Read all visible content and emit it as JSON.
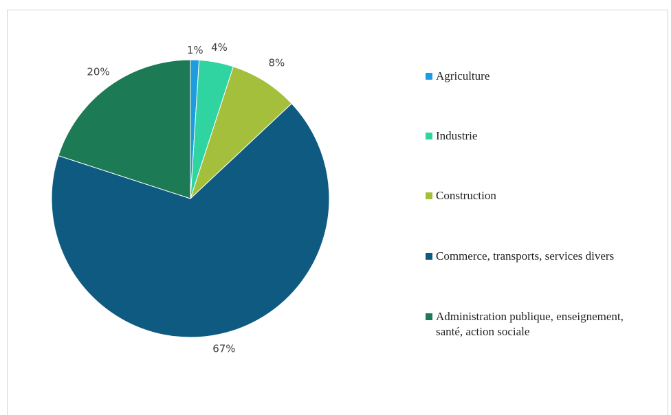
{
  "chart_data": {
    "type": "pie",
    "title": "",
    "slices": [
      {
        "label": "Agriculture",
        "value": 1,
        "display": "1%",
        "color": "#1f9be0"
      },
      {
        "label": "Industrie",
        "value": 4,
        "display": "4%",
        "color": "#2fd4a0"
      },
      {
        "label": "Construction",
        "value": 8,
        "display": "8%",
        "color": "#a3bf3c"
      },
      {
        "label": "Commerce, transports, services divers",
        "value": 67,
        "display": "67%",
        "color": "#0e5a80"
      },
      {
        "label": "Administration publique, enseignement, santé, action sociale",
        "value": 20,
        "display": "20%",
        "color": "#1c7a55"
      }
    ],
    "legend_position": "right"
  }
}
